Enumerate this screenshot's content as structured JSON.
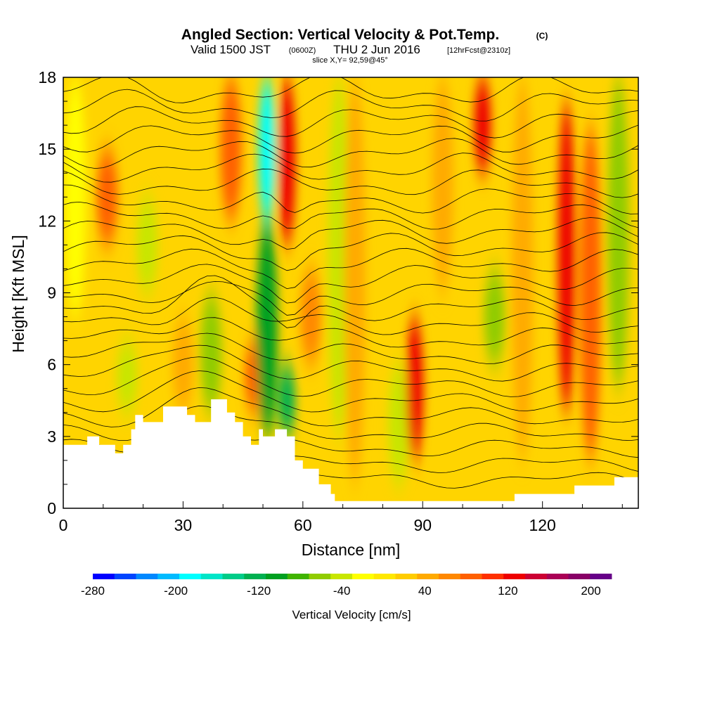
{
  "title": {
    "main": "Angled Section: Vertical Velocity & Pot.Temp.",
    "unit_tag": "(C)",
    "valid_prefix": "Valid 1500 JST",
    "zulu": "(0600Z)",
    "valid_date": "THU 2 Jun 2016",
    "forecast": "[12hrFcst@2310z]",
    "slice": "slice X,Y= 92,59@45°"
  },
  "chart_data": {
    "type": "heatmap",
    "description_fields": "vertical velocity (filled) with potential temperature contours (lines)",
    "xlabel": "Distance [nm]",
    "ylabel": "Height [Kft MSL]",
    "xlim": [
      0,
      144
    ],
    "ylim": [
      0,
      18
    ],
    "x_ticks": [
      "0",
      "30",
      "60",
      "90",
      "120"
    ],
    "y_ticks": [
      "0",
      "3",
      "6",
      "9",
      "12",
      "15",
      "18"
    ],
    "x_tick_values": [
      0,
      30,
      60,
      90,
      120
    ],
    "y_tick_values": [
      0,
      3,
      6,
      9,
      12,
      15,
      18
    ],
    "colorbar": {
      "label": "Vertical Velocity [cm/s]",
      "range": [
        -280,
        220
      ],
      "tick_labels": [
        "-280",
        "-200",
        "-120",
        "-40",
        "40",
        "120",
        "200"
      ],
      "tick_values": [
        -280,
        -200,
        -120,
        -40,
        40,
        120,
        200
      ],
      "colors": [
        "#0000ff",
        "#0044ff",
        "#0088ff",
        "#00bbff",
        "#00ffff",
        "#00e5c8",
        "#00cc88",
        "#00b050",
        "#00a020",
        "#40b400",
        "#90cc00",
        "#c8e600",
        "#ffff00",
        "#ffe800",
        "#ffcc00",
        "#ffaa00",
        "#ff8800",
        "#ff6000",
        "#ff3000",
        "#ee0000",
        "#cc0033",
        "#aa0055",
        "#880066",
        "#660088"
      ]
    },
    "velocity_columns": [
      {
        "x": 3,
        "v": -30,
        "zmin": 8,
        "zmax": 18
      },
      {
        "x": 11,
        "v": 80,
        "zmin": 11,
        "zmax": 15
      },
      {
        "x": 16,
        "v": -50,
        "zmin": 4,
        "zmax": 7
      },
      {
        "x": 21,
        "v": -40,
        "zmin": 9,
        "zmax": 13
      },
      {
        "x": 30,
        "v": 50,
        "zmin": 4,
        "zmax": 8
      },
      {
        "x": 37,
        "v": -70,
        "zmin": 4,
        "zmax": 9
      },
      {
        "x": 42,
        "v": 90,
        "zmin": 12,
        "zmax": 18
      },
      {
        "x": 48,
        "v": 80,
        "zmin": 4,
        "zmax": 7
      },
      {
        "x": 51,
        "v": -180,
        "zmin": 12,
        "zmax": 18
      },
      {
        "x": 51,
        "v": -100,
        "zmin": 3,
        "zmax": 12
      },
      {
        "x": 56,
        "v": 130,
        "zmin": 11,
        "zmax": 18
      },
      {
        "x": 56,
        "v": -120,
        "zmin": 3,
        "zmax": 6
      },
      {
        "x": 62,
        "v": 60,
        "zmin": 6,
        "zmax": 10
      },
      {
        "x": 69,
        "v": -40,
        "zmin": 3,
        "zmax": 18
      },
      {
        "x": 73,
        "v": 50,
        "zmin": 1,
        "zmax": 18
      },
      {
        "x": 84,
        "v": -40,
        "zmin": 1,
        "zmax": 6
      },
      {
        "x": 88,
        "v": 130,
        "zmin": 2,
        "zmax": 8
      },
      {
        "x": 95,
        "v": 40,
        "zmin": 9,
        "zmax": 18
      },
      {
        "x": 105,
        "v": 130,
        "zmin": 14,
        "zmax": 18
      },
      {
        "x": 108,
        "v": -60,
        "zmin": 6,
        "zmax": 10
      },
      {
        "x": 115,
        "v": 50,
        "zmin": 2,
        "zmax": 18
      },
      {
        "x": 126,
        "v": 130,
        "zmin": 4,
        "zmax": 17
      },
      {
        "x": 132,
        "v": 80,
        "zmin": 2,
        "zmax": 16
      },
      {
        "x": 139,
        "v": -60,
        "zmin": 5,
        "zmax": 18
      }
    ],
    "terrain": [
      [
        0,
        2.65
      ],
      [
        6,
        2.65
      ],
      [
        6,
        3.0
      ],
      [
        9,
        3.0
      ],
      [
        9,
        2.65
      ],
      [
        13,
        2.65
      ],
      [
        13,
        2.3
      ],
      [
        15,
        2.3
      ],
      [
        15,
        2.65
      ],
      [
        17,
        2.65
      ],
      [
        17,
        3.3
      ],
      [
        18,
        3.3
      ],
      [
        18,
        3.9
      ],
      [
        20,
        3.9
      ],
      [
        20,
        3.6
      ],
      [
        25,
        3.6
      ],
      [
        25,
        4.25
      ],
      [
        31,
        4.25
      ],
      [
        31,
        3.9
      ],
      [
        33,
        3.9
      ],
      [
        33,
        3.6
      ],
      [
        37,
        3.6
      ],
      [
        37,
        4.55
      ],
      [
        41,
        4.55
      ],
      [
        41,
        4.0
      ],
      [
        43,
        4.0
      ],
      [
        43,
        3.6
      ],
      [
        45,
        3.6
      ],
      [
        45,
        3.0
      ],
      [
        47,
        3.0
      ],
      [
        47,
        2.65
      ],
      [
        49,
        2.65
      ],
      [
        49,
        3.3
      ],
      [
        50,
        3.3
      ],
      [
        50,
        3.0
      ],
      [
        53,
        3.0
      ],
      [
        53,
        3.3
      ],
      [
        56,
        3.3
      ],
      [
        56,
        3.0
      ],
      [
        58,
        3.0
      ],
      [
        58,
        2.0
      ],
      [
        60,
        2.0
      ],
      [
        60,
        1.65
      ],
      [
        64,
        1.65
      ],
      [
        64,
        1.0
      ],
      [
        67,
        1.0
      ],
      [
        67,
        0.6
      ],
      [
        68,
        0.6
      ],
      [
        68,
        0.3
      ],
      [
        113,
        0.3
      ],
      [
        113,
        0.6
      ],
      [
        128,
        0.6
      ],
      [
        128,
        0.95
      ],
      [
        138,
        0.95
      ],
      [
        138,
        1.3
      ],
      [
        144,
        1.3
      ]
    ]
  }
}
